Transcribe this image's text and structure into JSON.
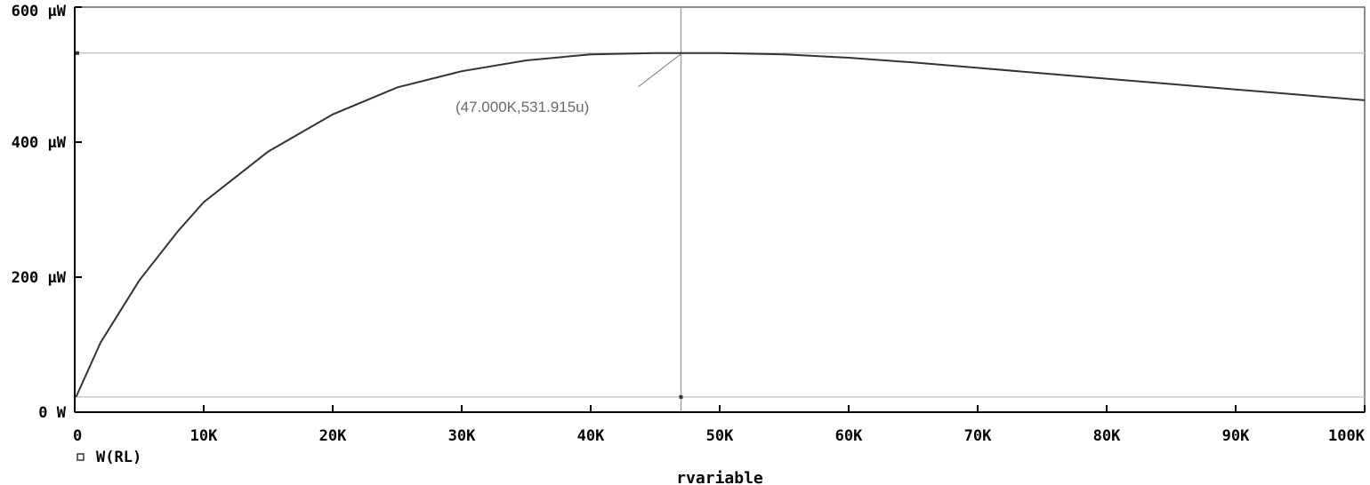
{
  "chart_data": {
    "type": "line",
    "xlabel": "rvariable",
    "ylabel": "",
    "xlim": [
      0,
      100000
    ],
    "ylim": [
      0,
      0.0006
    ],
    "x_ticks": [
      {
        "value": 0,
        "label": "0"
      },
      {
        "value": 10000,
        "label": "10K"
      },
      {
        "value": 20000,
        "label": "20K"
      },
      {
        "value": 30000,
        "label": "30K"
      },
      {
        "value": 40000,
        "label": "40K"
      },
      {
        "value": 50000,
        "label": "50K"
      },
      {
        "value": 60000,
        "label": "60K"
      },
      {
        "value": 70000,
        "label": "70K"
      },
      {
        "value": 80000,
        "label": "80K"
      },
      {
        "value": 90000,
        "label": "90K"
      },
      {
        "value": 100000,
        "label": "100K"
      }
    ],
    "y_ticks": [
      {
        "value": 0,
        "label": "0 W"
      },
      {
        "value": 0.0002,
        "label": "200 µW"
      },
      {
        "value": 0.0004,
        "label": "400 µW"
      },
      {
        "value": 0.0006,
        "label": "600 µW"
      }
    ],
    "series": [
      {
        "name": "W(RL)",
        "color": "#333333",
        "x": [
          100,
          2000,
          5000,
          8000,
          10000,
          15000,
          20000,
          25000,
          30000,
          35000,
          40000,
          45000,
          49000,
          50000,
          55000,
          60000,
          65000,
          70000,
          75000,
          80000,
          85000,
          90000,
          95000,
          100000
        ],
        "y": [
          2.25e-05,
          0.000103,
          0.000195,
          0.000268,
          0.000311,
          0.000386,
          0.000441,
          0.000481,
          0.000505,
          0.000521,
          0.00053,
          0.000532,
          0.000532,
          0.000532,
          0.00053,
          0.000525,
          0.000518,
          0.00051,
          0.000502,
          0.000494,
          0.000486,
          0.000478,
          0.00047,
          0.000462
        ]
      }
    ],
    "cursor": {
      "x": 47000,
      "y": 0.000531915,
      "label": "(47.000K,531.915u)"
    },
    "reference_y": [
      2.25e-05,
      0.000531915
    ],
    "grid": false,
    "legend": "bottom-left"
  }
}
